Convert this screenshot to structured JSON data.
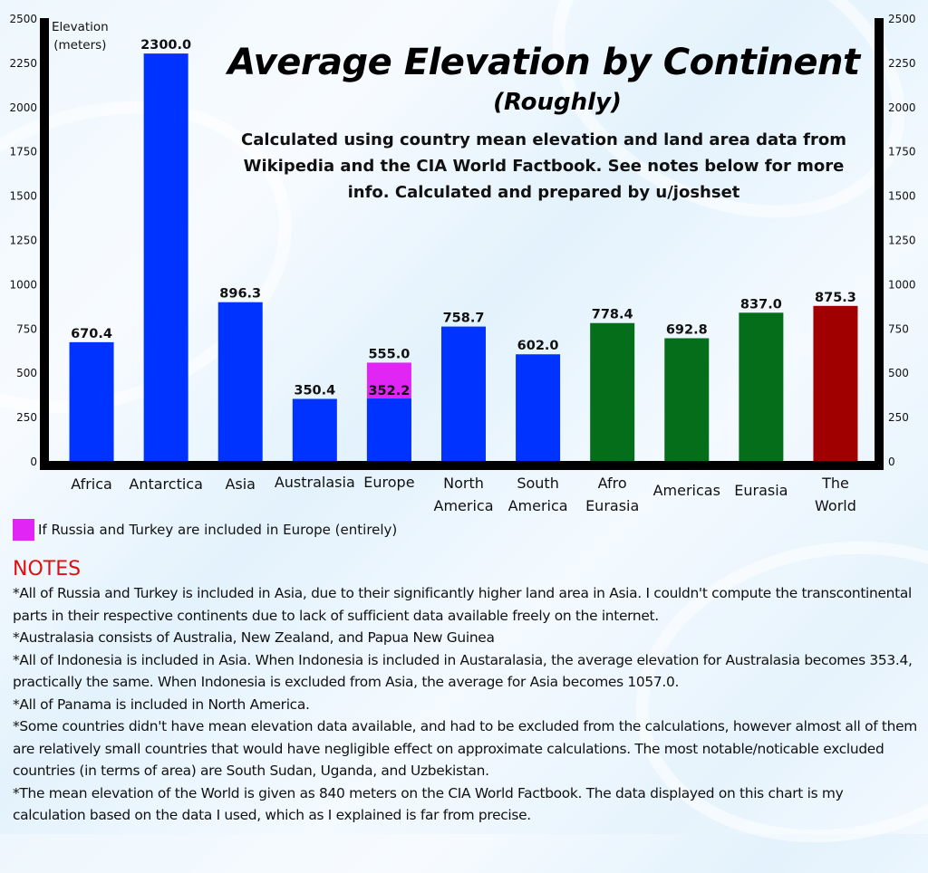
{
  "chart_data": {
    "type": "bar",
    "title": "Average Elevation by Continent",
    "subtitle": "(Roughly)",
    "description": "Calculated using country mean elevation and land area data from Wikipedia and the CIA World Factbook. See notes below for more info. Calculated and prepared by u/joshset",
    "ylabel": "Elevation (meters)",
    "ylabel_lines": [
      "Elevation",
      "(meters)"
    ],
    "xlabel": "",
    "ylim": [
      0,
      2500
    ],
    "yticks": [
      0,
      250,
      500,
      750,
      1000,
      1250,
      1500,
      1750,
      2000,
      2250,
      2500
    ],
    "grid": false,
    "categories": [
      {
        "label_lines": [
          "Africa"
        ],
        "value": 670.4,
        "value_label": "670.4",
        "color": "#0033ff"
      },
      {
        "label_lines": [
          "Antarctica"
        ],
        "value": 2300.0,
        "value_label": "2300.0",
        "color": "#0033ff"
      },
      {
        "label_lines": [
          "Asia"
        ],
        "value": 896.3,
        "value_label": "896.3",
        "color": "#0033ff"
      },
      {
        "label_lines": [
          "Australasia"
        ],
        "value": 350.4,
        "value_label": "350.4",
        "color": "#0033ff"
      },
      {
        "label_lines": [
          "Europe"
        ],
        "value": 352.2,
        "value_label": "352.2",
        "color": "#0033ff",
        "alt_value": 555.0,
        "alt_value_label": "555.0",
        "alt_color": "#e025f5"
      },
      {
        "label_lines": [
          "North",
          "America"
        ],
        "value": 758.7,
        "value_label": "758.7",
        "color": "#0033ff"
      },
      {
        "label_lines": [
          "South",
          "America"
        ],
        "value": 602.0,
        "value_label": "602.0",
        "color": "#0033ff"
      },
      {
        "label_lines": [
          "Afro",
          "Eurasia"
        ],
        "value": 778.4,
        "value_label": "778.4",
        "color": "#046e1a"
      },
      {
        "label_lines": [
          "Americas"
        ],
        "value": 692.8,
        "value_label": "692.8",
        "color": "#046e1a"
      },
      {
        "label_lines": [
          "Eurasia"
        ],
        "value": 837.0,
        "value_label": "837.0",
        "color": "#046e1a"
      },
      {
        "label_lines": [
          "The",
          "World"
        ],
        "value": 875.3,
        "value_label": "875.3",
        "color": "#a00000"
      }
    ],
    "legend": [
      {
        "label": "If Russia and Turkey are included in Europe (entirely)",
        "color": "#e025f5"
      }
    ],
    "legend_position": "bottom-left"
  },
  "notes": {
    "heading": "NOTES",
    "items": [
      "*All of Russia and Turkey is included in Asia, due to their significantly higher land area in Asia. I couldn't compute the transcontinental parts in their respective continents due to lack of sufficient data available freely on the internet.",
      "*Australasia consists of Australia, New Zealand, and Papua New Guinea",
      "*All of Indonesia is included in Asia. When Indonesia is included in Austaralasia, the average elevation for Australasia becomes 353.4, practically the same. When Indonesia is excluded from Asia, the average for Asia becomes 1057.0.",
      "*All of Panama is included in North America.",
      "*Some countries didn't have mean elevation data available, and had to be excluded from the calculations, however almost all of them are relatively small countries that would have negligible effect on approximate calculations. The most notable/noticable excluded countries (in terms of area) are South Sudan, Uganda, and Uzbekistan.",
      "*The mean elevation of the World is given as 840 meters on the CIA World Factbook. The data displayed on this chart is my calculation based on the data I used, which as I explained is far from precise."
    ]
  }
}
